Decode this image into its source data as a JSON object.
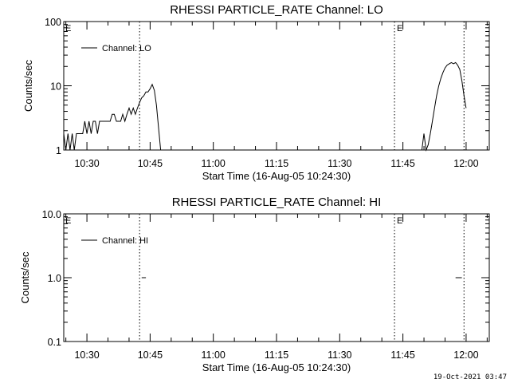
{
  "footer": {
    "stamp": "19-Oct-2021 03:47"
  },
  "colors": {
    "foreground": "#000000",
    "background": "#ffffff"
  },
  "chart_data": [
    {
      "type": "line",
      "title": "RHESSI PARTICLE_RATE Channel: LO",
      "xlabel": "Start Time (16-Aug-05 10:24:30)",
      "ylabel": "Counts/sec",
      "yscale": "log",
      "ylim": [
        1,
        100
      ],
      "yticks": [
        1,
        10,
        100
      ],
      "ytick_labels": [
        "1",
        "10",
        "100"
      ],
      "xlim": [
        "10:24:30",
        "12:05:30"
      ],
      "xticks": [
        "10:30",
        "10:45",
        "11:00",
        "11:15",
        "11:30",
        "11:45",
        "12:00"
      ],
      "legend": {
        "position": "top-left",
        "entries": [
          "Channel: LO"
        ]
      },
      "event_lines": [
        {
          "time": "10:42:30",
          "label": ""
        },
        {
          "time": "11:43:00",
          "label": "E"
        },
        {
          "time": "11:59:30",
          "label": ""
        }
      ],
      "corner_mark": "E",
      "series": [
        {
          "name": "Channel: LO",
          "segments": [
            {
              "x": [
                "10:24:30",
                "10:25:00",
                "10:25:30",
                "10:26:00",
                "10:26:30",
                "10:27:00",
                "10:27:30",
                "10:28:00",
                "10:28:30",
                "10:29:00",
                "10:29:30",
                "10:30:00",
                "10:30:30",
                "10:31:00",
                "10:31:30",
                "10:32:00",
                "10:32:30",
                "10:33:00",
                "10:33:30",
                "10:34:00",
                "10:34:30",
                "10:35:00",
                "10:35:30",
                "10:36:00",
                "10:36:30",
                "10:37:00",
                "10:37:30",
                "10:38:00",
                "10:38:30",
                "10:39:00",
                "10:39:30",
                "10:40:00",
                "10:40:30",
                "10:41:00",
                "10:41:30",
                "10:42:00",
                "10:42:30",
                "10:43:00",
                "10:43:30",
                "10:44:00",
                "10:44:30",
                "10:45:00",
                "10:45:30",
                "10:46:00",
                "10:46:30",
                "10:47:00",
                "10:47:30"
              ],
              "y": [
                1.8,
                1,
                1.8,
                1,
                1.8,
                1,
                1.8,
                1.8,
                1.8,
                1.8,
                2.8,
                1.8,
                2.8,
                1.8,
                2.8,
                2.8,
                1.8,
                2.8,
                2.8,
                2.8,
                2.8,
                2.8,
                2.8,
                3.6,
                3.6,
                2.8,
                2.8,
                2.8,
                3.6,
                2.8,
                3.6,
                4.5,
                3.6,
                4.5,
                3.6,
                4.5,
                5.5,
                6.5,
                7,
                8,
                8,
                9,
                10.5,
                8.5,
                5,
                2.2,
                1
              ]
            },
            {
              "x": [
                "11:49:30",
                "11:50:00",
                "11:50:30",
                "11:51:00",
                "11:51:30",
                "11:52:00",
                "11:52:30",
                "11:53:00",
                "11:53:30",
                "11:54:00",
                "11:54:30",
                "11:55:00",
                "11:55:30",
                "11:56:00",
                "11:56:30",
                "11:57:00",
                "11:57:30",
                "11:58:00",
                "11:58:30",
                "11:59:00",
                "11:59:30",
                "12:00:00"
              ],
              "y": [
                1,
                1.8,
                1,
                1.2,
                1.8,
                2.8,
                4.5,
                7,
                10,
                13,
                16,
                19,
                21,
                22,
                23,
                22,
                23,
                21,
                18,
                12,
                7,
                4.5
              ]
            }
          ]
        }
      ]
    },
    {
      "type": "line",
      "title": "RHESSI PARTICLE_RATE Channel: HI",
      "xlabel": "Start Time (16-Aug-05 10:24:30)",
      "ylabel": "Counts/sec",
      "yscale": "log",
      "ylim": [
        0.1,
        10
      ],
      "yticks": [
        0.1,
        1,
        10
      ],
      "ytick_labels": [
        "0.1",
        "1.0",
        "10.0"
      ],
      "xlim": [
        "10:24:30",
        "12:05:30"
      ],
      "xticks": [
        "10:30",
        "10:45",
        "11:00",
        "11:15",
        "11:30",
        "11:45",
        "12:00"
      ],
      "legend": {
        "position": "top-left",
        "entries": [
          "Channel: HI"
        ]
      },
      "event_lines": [
        {
          "time": "10:42:30",
          "label": ""
        },
        {
          "time": "11:43:00",
          "label": "E"
        },
        {
          "time": "11:59:30",
          "label": ""
        }
      ],
      "corner_mark": "E",
      "series": [
        {
          "name": "Channel: HI",
          "segments": [
            {
              "x": [
                "10:43:00",
                "10:44:00"
              ],
              "y": [
                1,
                1
              ]
            },
            {
              "x": [
                "11:57:30",
                "11:59:00"
              ],
              "y": [
                1,
                1
              ]
            }
          ]
        }
      ]
    }
  ]
}
